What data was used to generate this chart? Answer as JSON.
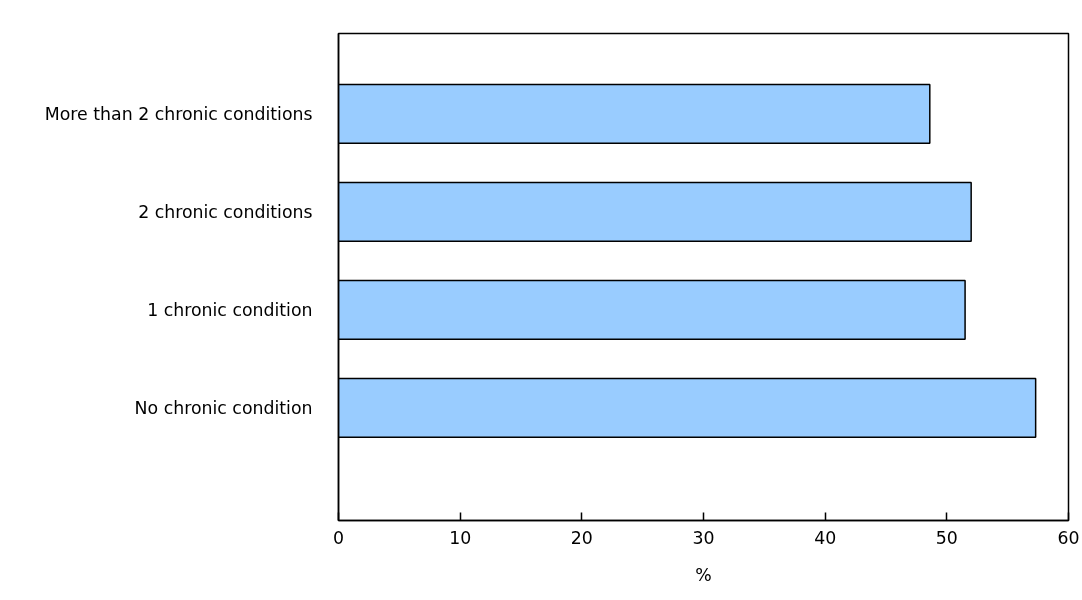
{
  "chart_data": {
    "type": "bar",
    "orientation": "horizontal",
    "xlabel": "%",
    "categories": [
      "More than 2 chronic conditions",
      "2 chronic conditions",
      "1 chronic condition",
      "No chronic condition"
    ],
    "values": [
      48.6,
      52.0,
      51.5,
      57.3
    ],
    "color": "#99ccff",
    "xlim": [
      0,
      60
    ],
    "xticks": [
      0,
      10,
      20,
      30,
      40,
      50,
      60
    ],
    "grid": false
  }
}
